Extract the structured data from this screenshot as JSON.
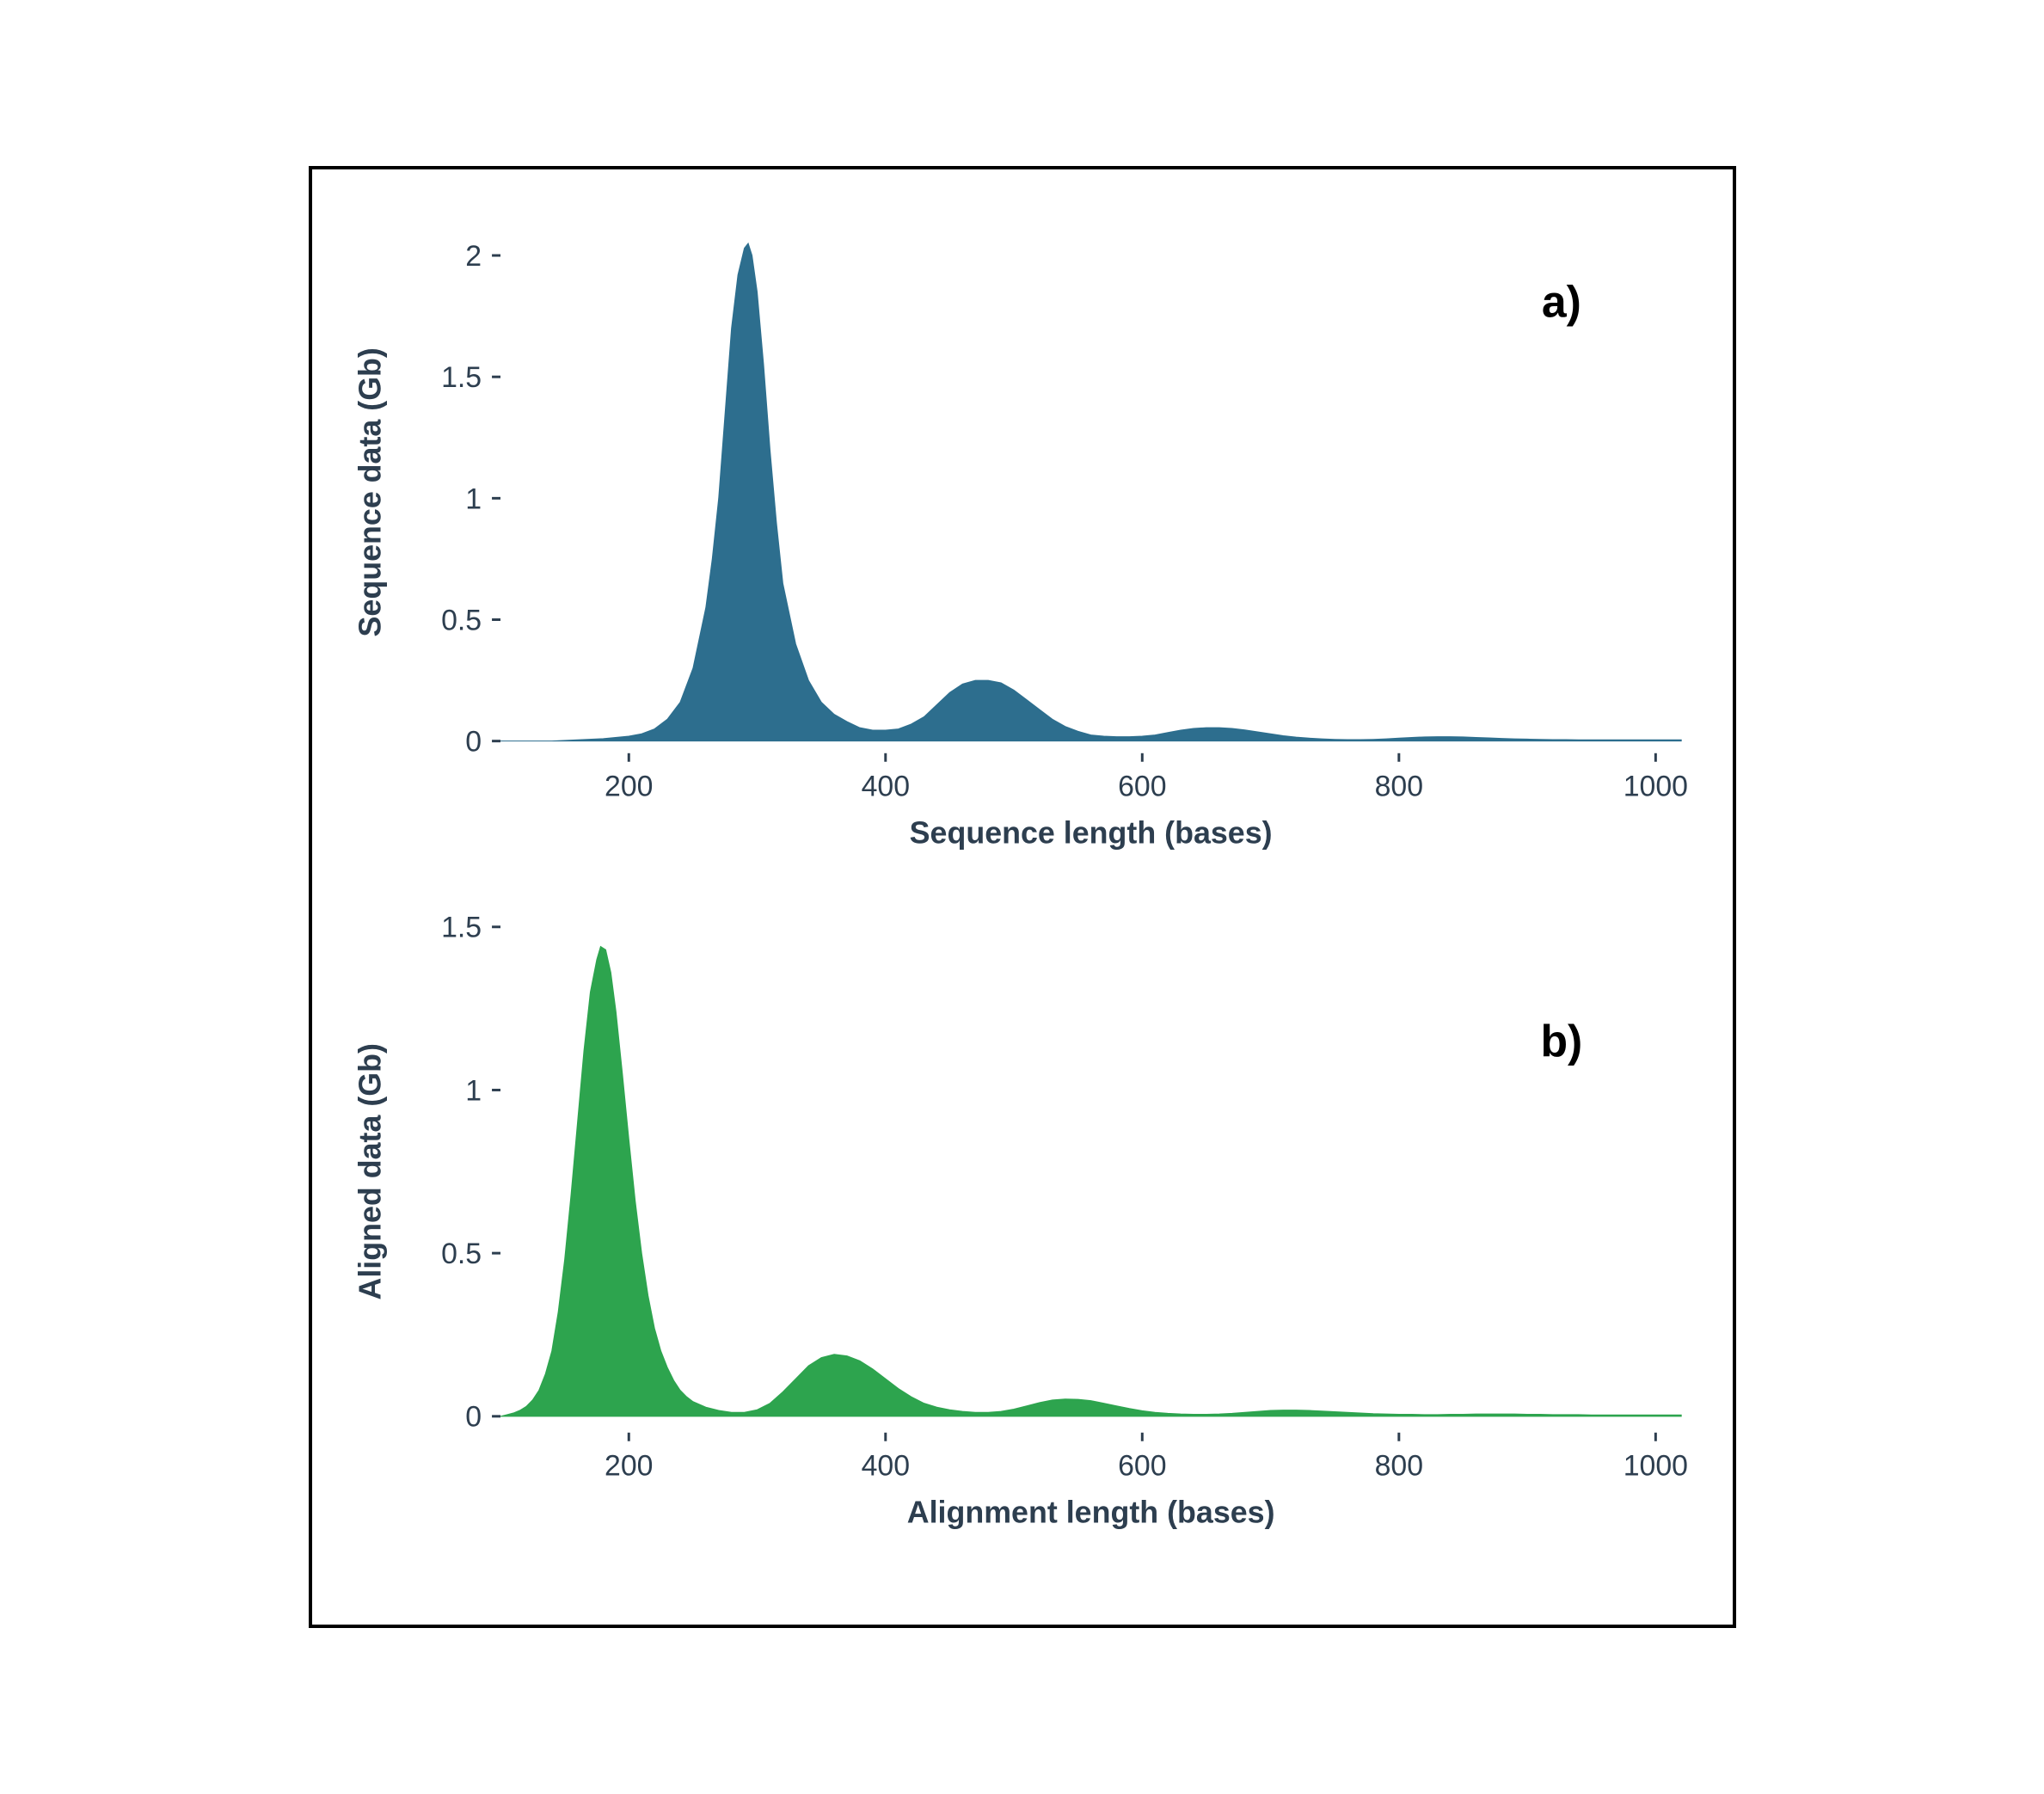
{
  "figure": {
    "border_color": "#000000",
    "background_color": "#ffffff",
    "axis_tick_color": "#2d3e4f",
    "axis_label_color": "#2d3e4f",
    "tick_len": 10,
    "tick_width": 3
  },
  "chart_a": {
    "type": "area",
    "tag": "a)",
    "fill_color": "#2d6e8e",
    "xlabel": "Sequence length (bases)",
    "ylabel": "Sequence data (Gb)",
    "xlim": [
      100,
      1020
    ],
    "ylim": [
      -0.05,
      2.1
    ],
    "xticks": [
      200,
      400,
      600,
      800,
      1000
    ],
    "yticks": [
      0,
      0.5,
      1,
      1.5,
      2
    ],
    "ytick_labels": [
      "0",
      "0.5",
      "1",
      "1.5",
      "2"
    ],
    "data": [
      [
        100,
        0.0
      ],
      [
        120,
        0.0
      ],
      [
        140,
        0.0
      ],
      [
        160,
        0.005
      ],
      [
        180,
        0.01
      ],
      [
        200,
        0.02
      ],
      [
        210,
        0.03
      ],
      [
        220,
        0.05
      ],
      [
        230,
        0.09
      ],
      [
        240,
        0.16
      ],
      [
        250,
        0.3
      ],
      [
        260,
        0.55
      ],
      [
        265,
        0.75
      ],
      [
        270,
        1.0
      ],
      [
        275,
        1.35
      ],
      [
        280,
        1.7
      ],
      [
        285,
        1.92
      ],
      [
        290,
        2.03
      ],
      [
        293,
        2.05
      ],
      [
        296,
        2.0
      ],
      [
        300,
        1.85
      ],
      [
        305,
        1.55
      ],
      [
        310,
        1.2
      ],
      [
        315,
        0.9
      ],
      [
        320,
        0.65
      ],
      [
        330,
        0.4
      ],
      [
        340,
        0.25
      ],
      [
        350,
        0.16
      ],
      [
        360,
        0.11
      ],
      [
        370,
        0.08
      ],
      [
        380,
        0.055
      ],
      [
        390,
        0.045
      ],
      [
        400,
        0.045
      ],
      [
        410,
        0.05
      ],
      [
        420,
        0.07
      ],
      [
        430,
        0.1
      ],
      [
        440,
        0.15
      ],
      [
        450,
        0.2
      ],
      [
        460,
        0.235
      ],
      [
        470,
        0.25
      ],
      [
        480,
        0.25
      ],
      [
        490,
        0.24
      ],
      [
        500,
        0.21
      ],
      [
        510,
        0.17
      ],
      [
        520,
        0.13
      ],
      [
        530,
        0.09
      ],
      [
        540,
        0.06
      ],
      [
        550,
        0.04
      ],
      [
        560,
        0.025
      ],
      [
        570,
        0.02
      ],
      [
        580,
        0.018
      ],
      [
        590,
        0.018
      ],
      [
        600,
        0.02
      ],
      [
        610,
        0.025
      ],
      [
        620,
        0.035
      ],
      [
        630,
        0.045
      ],
      [
        640,
        0.052
      ],
      [
        650,
        0.055
      ],
      [
        660,
        0.055
      ],
      [
        670,
        0.052
      ],
      [
        680,
        0.046
      ],
      [
        690,
        0.038
      ],
      [
        700,
        0.03
      ],
      [
        710,
        0.022
      ],
      [
        720,
        0.016
      ],
      [
        730,
        0.012
      ],
      [
        740,
        0.009
      ],
      [
        750,
        0.007
      ],
      [
        760,
        0.006
      ],
      [
        770,
        0.006
      ],
      [
        780,
        0.007
      ],
      [
        790,
        0.009
      ],
      [
        800,
        0.012
      ],
      [
        810,
        0.015
      ],
      [
        820,
        0.017
      ],
      [
        830,
        0.018
      ],
      [
        840,
        0.018
      ],
      [
        850,
        0.017
      ],
      [
        860,
        0.015
      ],
      [
        870,
        0.013
      ],
      [
        880,
        0.011
      ],
      [
        890,
        0.009
      ],
      [
        900,
        0.008
      ],
      [
        910,
        0.007
      ],
      [
        920,
        0.006
      ],
      [
        930,
        0.006
      ],
      [
        940,
        0.005
      ],
      [
        950,
        0.005
      ],
      [
        960,
        0.005
      ],
      [
        970,
        0.005
      ],
      [
        980,
        0.005
      ],
      [
        990,
        0.005
      ],
      [
        1000,
        0.005
      ],
      [
        1010,
        0.005
      ],
      [
        1020,
        0.005
      ]
    ]
  },
  "chart_b": {
    "type": "area",
    "tag": "b)",
    "fill_color": "#2da44e",
    "xlabel": "Alignment length (bases)",
    "ylabel": "Aligned data (Gb)",
    "xlim": [
      100,
      1020
    ],
    "ylim": [
      -0.05,
      1.55
    ],
    "xticks": [
      200,
      400,
      600,
      800,
      1000
    ],
    "yticks": [
      0,
      0.5,
      1,
      1.5
    ],
    "ytick_labels": [
      "0",
      "0.5",
      "1",
      "1.5"
    ],
    "data": [
      [
        100,
        0.0
      ],
      [
        105,
        0.005
      ],
      [
        110,
        0.01
      ],
      [
        115,
        0.018
      ],
      [
        120,
        0.03
      ],
      [
        125,
        0.05
      ],
      [
        130,
        0.08
      ],
      [
        135,
        0.13
      ],
      [
        140,
        0.2
      ],
      [
        145,
        0.32
      ],
      [
        150,
        0.48
      ],
      [
        155,
        0.68
      ],
      [
        160,
        0.9
      ],
      [
        165,
        1.12
      ],
      [
        170,
        1.3
      ],
      [
        175,
        1.4
      ],
      [
        178,
        1.44
      ],
      [
        182,
        1.43
      ],
      [
        186,
        1.36
      ],
      [
        190,
        1.24
      ],
      [
        195,
        1.05
      ],
      [
        200,
        0.85
      ],
      [
        205,
        0.66
      ],
      [
        210,
        0.5
      ],
      [
        215,
        0.37
      ],
      [
        220,
        0.27
      ],
      [
        225,
        0.2
      ],
      [
        230,
        0.15
      ],
      [
        235,
        0.11
      ],
      [
        240,
        0.08
      ],
      [
        245,
        0.06
      ],
      [
        250,
        0.045
      ],
      [
        260,
        0.028
      ],
      [
        270,
        0.018
      ],
      [
        280,
        0.012
      ],
      [
        290,
        0.012
      ],
      [
        300,
        0.02
      ],
      [
        310,
        0.04
      ],
      [
        320,
        0.075
      ],
      [
        330,
        0.115
      ],
      [
        340,
        0.155
      ],
      [
        350,
        0.18
      ],
      [
        360,
        0.19
      ],
      [
        370,
        0.185
      ],
      [
        380,
        0.17
      ],
      [
        390,
        0.145
      ],
      [
        400,
        0.115
      ],
      [
        410,
        0.085
      ],
      [
        420,
        0.06
      ],
      [
        430,
        0.04
      ],
      [
        440,
        0.028
      ],
      [
        450,
        0.02
      ],
      [
        460,
        0.015
      ],
      [
        470,
        0.012
      ],
      [
        480,
        0.012
      ],
      [
        490,
        0.015
      ],
      [
        500,
        0.022
      ],
      [
        510,
        0.032
      ],
      [
        520,
        0.042
      ],
      [
        530,
        0.05
      ],
      [
        540,
        0.053
      ],
      [
        550,
        0.052
      ],
      [
        560,
        0.048
      ],
      [
        570,
        0.04
      ],
      [
        580,
        0.032
      ],
      [
        590,
        0.024
      ],
      [
        600,
        0.017
      ],
      [
        610,
        0.012
      ],
      [
        620,
        0.009
      ],
      [
        630,
        0.007
      ],
      [
        640,
        0.006
      ],
      [
        650,
        0.006
      ],
      [
        660,
        0.007
      ],
      [
        670,
        0.009
      ],
      [
        680,
        0.012
      ],
      [
        690,
        0.015
      ],
      [
        700,
        0.018
      ],
      [
        710,
        0.019
      ],
      [
        720,
        0.019
      ],
      [
        730,
        0.018
      ],
      [
        740,
        0.016
      ],
      [
        750,
        0.014
      ],
      [
        760,
        0.012
      ],
      [
        770,
        0.01
      ],
      [
        780,
        0.008
      ],
      [
        790,
        0.007
      ],
      [
        800,
        0.006
      ],
      [
        810,
        0.006
      ],
      [
        820,
        0.005
      ],
      [
        830,
        0.005
      ],
      [
        840,
        0.006
      ],
      [
        850,
        0.006
      ],
      [
        860,
        0.007
      ],
      [
        870,
        0.007
      ],
      [
        880,
        0.007
      ],
      [
        890,
        0.007
      ],
      [
        900,
        0.006
      ],
      [
        910,
        0.006
      ],
      [
        920,
        0.005
      ],
      [
        930,
        0.005
      ],
      [
        940,
        0.005
      ],
      [
        950,
        0.004
      ],
      [
        960,
        0.004
      ],
      [
        970,
        0.004
      ],
      [
        980,
        0.004
      ],
      [
        990,
        0.004
      ],
      [
        1000,
        0.004
      ],
      [
        1010,
        0.004
      ],
      [
        1020,
        0.004
      ]
    ]
  }
}
